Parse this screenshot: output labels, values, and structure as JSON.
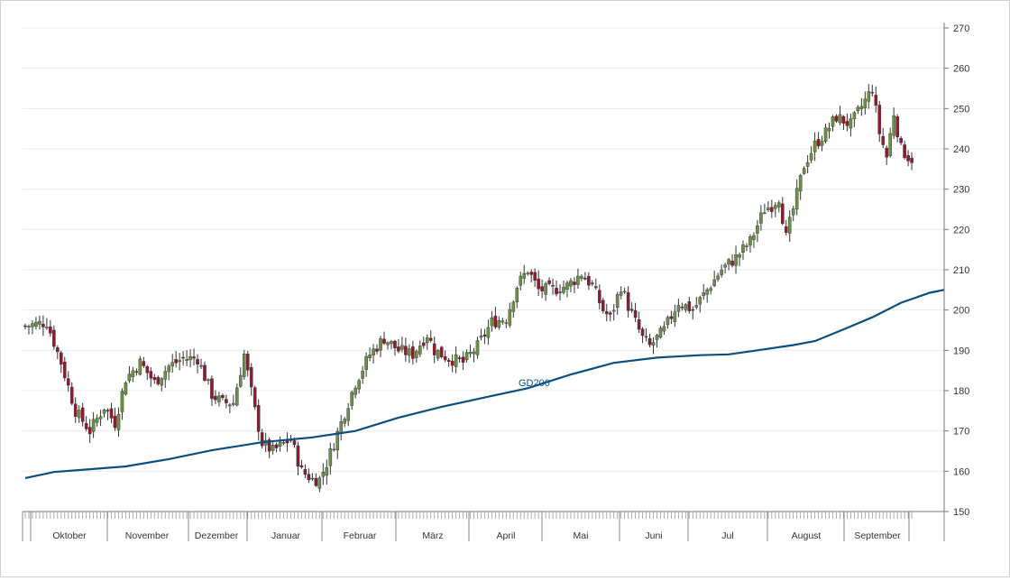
{
  "chart_data": {
    "type": "candlestick",
    "y_axis": {
      "position": "right",
      "ylim": [
        150,
        270
      ],
      "ticks": [
        150,
        160,
        170,
        180,
        190,
        200,
        210,
        220,
        230,
        240,
        250,
        260,
        270
      ],
      "grid": true
    },
    "x_axis": {
      "months": [
        "Oktober",
        "November",
        "Dezember",
        "Januar",
        "Februar",
        "März",
        "April",
        "Mai",
        "Juni",
        "Jul",
        "August",
        "September"
      ],
      "trading_days": 248
    },
    "colors": {
      "up": "#6d8f4a",
      "down": "#8e1b32",
      "wick": "#333333",
      "ma": "#0b4f80",
      "grid": "#ececec",
      "axis": "#777777",
      "label": "#0b4f80"
    },
    "close_path": {
      "description_points": [
        [
          0,
          196
        ],
        [
          6,
          197
        ],
        [
          10,
          187
        ],
        [
          14,
          175
        ],
        [
          18,
          170
        ],
        [
          22,
          176
        ],
        [
          25,
          172
        ],
        [
          28,
          183
        ],
        [
          32,
          187
        ],
        [
          36,
          182
        ],
        [
          40,
          186
        ],
        [
          44,
          188
        ],
        [
          48,
          188
        ],
        [
          52,
          179
        ],
        [
          55,
          177
        ],
        [
          58,
          177
        ],
        [
          61,
          189
        ],
        [
          64,
          175
        ],
        [
          66,
          167
        ],
        [
          69,
          165
        ],
        [
          74,
          168
        ],
        [
          77,
          160
        ],
        [
          80,
          158
        ],
        [
          82,
          158
        ],
        [
          84,
          162
        ],
        [
          88,
          172
        ],
        [
          92,
          182
        ],
        [
          96,
          189
        ],
        [
          100,
          193
        ],
        [
          104,
          190
        ],
        [
          108,
          189
        ],
        [
          112,
          194
        ],
        [
          114,
          190
        ],
        [
          118,
          188
        ],
        [
          122,
          187
        ],
        [
          126,
          191
        ],
        [
          130,
          197
        ],
        [
          134,
          198
        ],
        [
          137,
          206
        ],
        [
          140,
          210
        ],
        [
          143,
          205
        ],
        [
          147,
          205
        ],
        [
          151,
          206
        ],
        [
          155,
          209
        ],
        [
          158,
          206
        ],
        [
          161,
          200
        ],
        [
          163,
          198
        ],
        [
          166,
          206
        ],
        [
          168,
          201
        ],
        [
          170,
          197
        ],
        [
          172,
          193
        ],
        [
          174,
          191
        ],
        [
          178,
          195
        ],
        [
          182,
          202
        ],
        [
          186,
          200
        ],
        [
          190,
          205
        ],
        [
          194,
          210
        ],
        [
          198,
          213
        ],
        [
          202,
          217
        ],
        [
          206,
          225
        ],
        [
          208,
          226
        ],
        [
          210,
          228
        ],
        [
          212,
          218
        ],
        [
          214,
          225
        ],
        [
          217,
          236
        ],
        [
          220,
          241
        ],
        [
          223,
          244
        ],
        [
          226,
          248
        ],
        [
          230,
          246
        ],
        [
          234,
          252
        ],
        [
          236,
          255
        ],
        [
          238,
          244
        ],
        [
          240,
          238
        ],
        [
          242,
          249
        ],
        [
          244,
          240
        ],
        [
          246,
          238
        ],
        [
          248,
          237
        ]
      ]
    },
    "moving_average": {
      "name": "GD200",
      "points": [
        [
          0,
          158.3
        ],
        [
          8,
          159.8
        ],
        [
          18,
          160.5
        ],
        [
          28,
          161.2
        ],
        [
          40,
          163.0
        ],
        [
          52,
          165.2
        ],
        [
          66,
          167.2
        ],
        [
          80,
          168.4
        ],
        [
          92,
          170.0
        ],
        [
          104,
          173.3
        ],
        [
          116,
          176.0
        ],
        [
          128,
          178.3
        ],
        [
          140,
          180.6
        ],
        [
          152,
          184.0
        ],
        [
          164,
          186.9
        ],
        [
          176,
          188.2
        ],
        [
          188,
          188.8
        ],
        [
          196,
          189.0
        ],
        [
          204,
          190.0
        ],
        [
          214,
          191.3
        ],
        [
          220,
          192.3
        ],
        [
          228,
          195.2
        ],
        [
          236,
          198.2
        ],
        [
          244,
          201.8
        ],
        [
          252,
          204.3
        ],
        [
          256,
          205.0
        ]
      ]
    },
    "legend": "none"
  }
}
